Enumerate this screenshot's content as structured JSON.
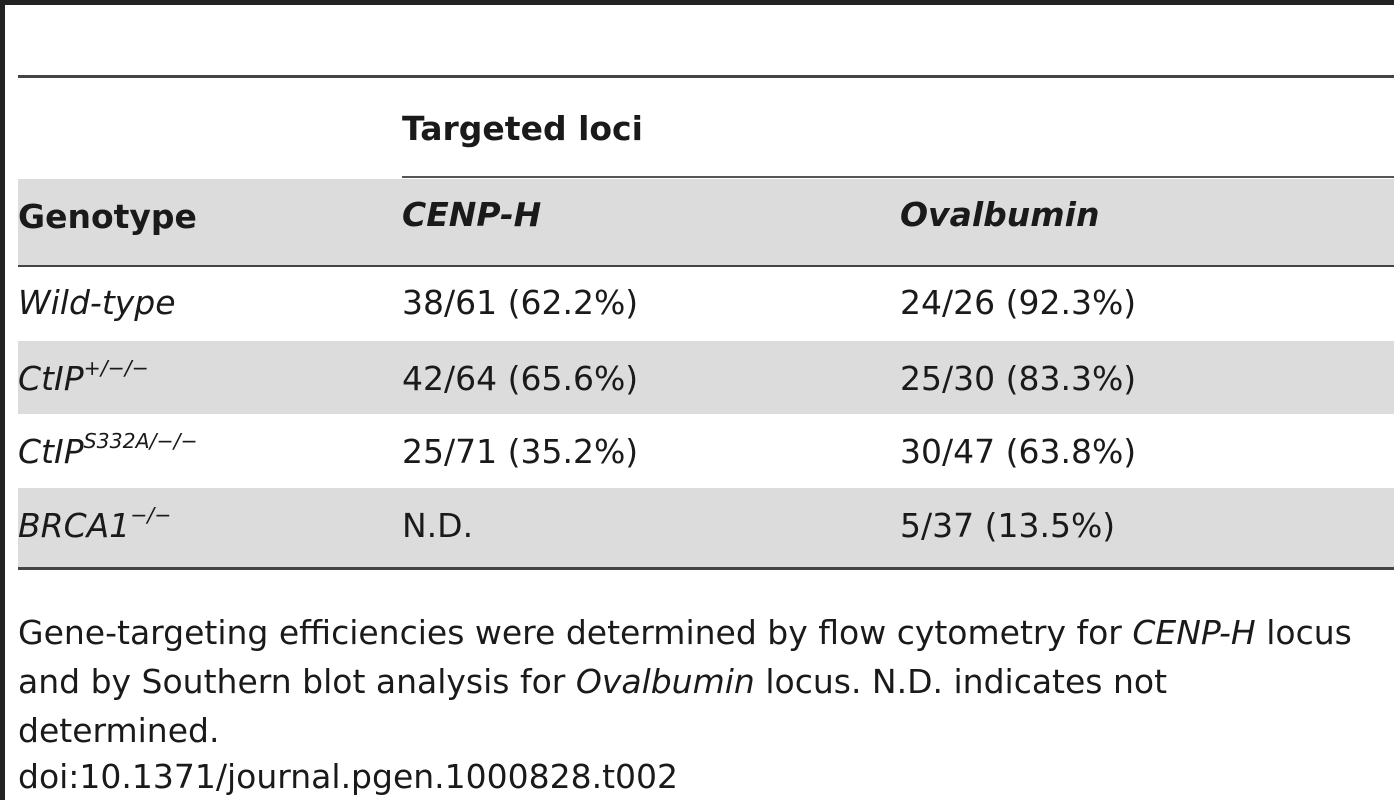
{
  "table": {
    "group_header": "Targeted loci",
    "columns": [
      "Genotype",
      "CENP-H",
      "Ovalbumin"
    ],
    "rows": [
      {
        "genotype": "Wild-type",
        "sup": "",
        "cenph": "38/61  (62.2%)",
        "ovalbumin": "24/26  (92.3%)"
      },
      {
        "genotype": "CtIP",
        "sup": "+/−/−",
        "cenph": "42/64  (65.6%)",
        "ovalbumin": "25/30  (83.3%)"
      },
      {
        "genotype": "CtIP",
        "sup": "S332A/−/−",
        "cenph": "25/71  (35.2%)",
        "ovalbumin": "30/47  (63.8%)"
      },
      {
        "genotype": "BRCA1",
        "sup": "−/−",
        "cenph": "N.D.",
        "ovalbumin": "5/37  (13.5%)"
      }
    ]
  },
  "footnote": {
    "part1": "Gene-targeting efficiencies were determined by flow cytometry for ",
    "term1": "CENP-H",
    "part2": " locus and by Southern blot analysis for ",
    "term2": "Ovalbumin",
    "part3": " locus. N.D. indicates not determined."
  },
  "doi": "doi:10.1371/journal.pgen.1000828.t002"
}
